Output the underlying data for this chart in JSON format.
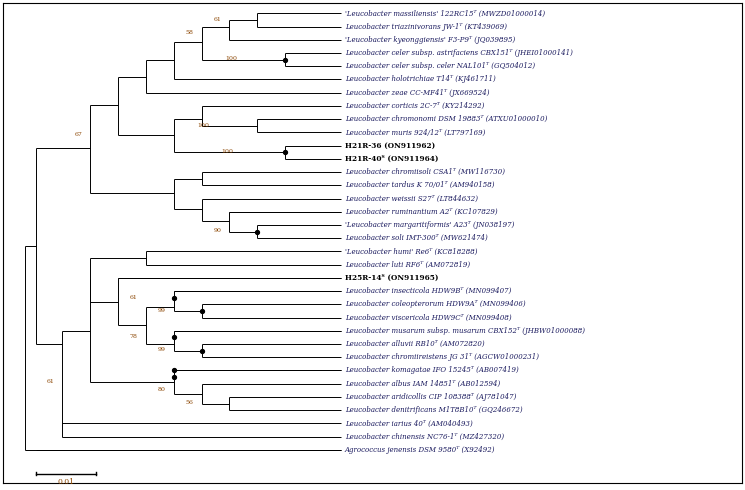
{
  "taxa": [
    {
      "label": "'Leucobacter massiliensis' 122RC15ᵀ (MWZD01000014)",
      "y": 1,
      "bold": false
    },
    {
      "label": "Leucobacter triazinivorans JW-1ᵀ (KT439069)",
      "y": 2,
      "bold": false
    },
    {
      "label": "'Leucobacter kyeonggiensis' F3-P9ᵀ (JQ039895)",
      "y": 3,
      "bold": false
    },
    {
      "label": "Leucobacter celer subsp. astrifaciens CBX151ᵀ (JHEI01000141)",
      "y": 4,
      "bold": false
    },
    {
      "label": "Leucobacter celer subsp. celer NAL101ᵀ (GQ504012)",
      "y": 5,
      "bold": false
    },
    {
      "label": "Leucobacter holotrichiae T14ᵀ (KJ461711)",
      "y": 6,
      "bold": false
    },
    {
      "label": "Leucobacter zeae CC-MF41ᵀ (JX669524)",
      "y": 7,
      "bold": false
    },
    {
      "label": "Leucobacter corticis 2C-7ᵀ (KY214292)",
      "y": 8,
      "bold": false
    },
    {
      "label": "Leucobacter chromonomi DSM 19883ᵀ (ATXU01000010)",
      "y": 9,
      "bold": false
    },
    {
      "label": "Leucobacter muris 924/12ᵀ (LT797169)",
      "y": 10,
      "bold": false
    },
    {
      "label": "H21R-36 (ON911962)",
      "y": 11,
      "bold": true
    },
    {
      "label": "H21R-40ᵀ (ON911964)",
      "y": 12,
      "bold": true
    },
    {
      "label": "Leucobacter chromiisoli CSA1ᵀ (MW116730)",
      "y": 13,
      "bold": false
    },
    {
      "label": "Leucobacter tardus K 70/01ᵀ (AM940158)",
      "y": 14,
      "bold": false
    },
    {
      "label": "Leucobacter weissii S27ᵀ (LT844632)",
      "y": 15,
      "bold": false
    },
    {
      "label": "Leucobacter ruminantium A2ᵀ (KC107829)",
      "y": 16,
      "bold": false
    },
    {
      "label": "'Leucobacter margaritiformis' A23ᵀ (JN038197)",
      "y": 17,
      "bold": false
    },
    {
      "label": "Leucobacter soli IMT-300ᵀ (MW621474)",
      "y": 18,
      "bold": false
    },
    {
      "label": "'Leucobacter humi' Re6ᵀ (KC818288)",
      "y": 19,
      "bold": false
    },
    {
      "label": "Leucobacter luti RF6ᵀ (AM072819)",
      "y": 20,
      "bold": false
    },
    {
      "label": "H25R-14ᵀ (ON911965)",
      "y": 21,
      "bold": true
    },
    {
      "label": "Leucobacter insecticola HDW9Bᵀ (MN099407)",
      "y": 22,
      "bold": false
    },
    {
      "label": "Leucobacter coleopterorum HDW9Aᵀ (MN099406)",
      "y": 23,
      "bold": false
    },
    {
      "label": "Leucobacter viscericola HDW9Cᵀ (MN099408)",
      "y": 24,
      "bold": false
    },
    {
      "label": "Leucobacter musarum subsp. musarum CBX152ᵀ (JHBW01000088)",
      "y": 25,
      "bold": false
    },
    {
      "label": "Leucobacter alluvii RB10ᵀ (AM072820)",
      "y": 26,
      "bold": false
    },
    {
      "label": "Leucobacter chromiireistens JG 31ᵀ (AGCW01000231)",
      "y": 27,
      "bold": false
    },
    {
      "label": "Leucobacter komagatae IFO 15245ᵀ (AB007419)",
      "y": 28,
      "bold": false
    },
    {
      "label": "Leucobacter albus IAM 14851ᵀ (AB012594)",
      "y": 29,
      "bold": false
    },
    {
      "label": "Leucobacter aridicollis CIP 108388ᵀ (AJ781047)",
      "y": 30,
      "bold": false
    },
    {
      "label": "Leucobacter denitrificans M1T8B10ᵀ (GQ246672)",
      "y": 31,
      "bold": false
    },
    {
      "label": "Leucobacter iarius 40ᵀ (AM040493)",
      "y": 32,
      "bold": false
    },
    {
      "label": "Leucobacter chinensis NC76-1ᵀ (MZ427320)",
      "y": 33,
      "bold": false
    },
    {
      "label": "Agrococcus jenensis DSM 9580ᵀ (X92492)",
      "y": 34,
      "bold": false
    }
  ],
  "scale_bar_label": "0.01",
  "fig_width": 7.45,
  "fig_height": 4.9,
  "dpi": 100
}
